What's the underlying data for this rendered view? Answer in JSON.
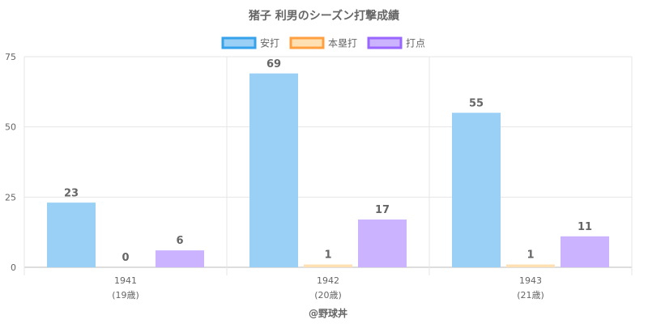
{
  "chart_data": {
    "type": "bar",
    "title": "猪子 利男のシーズン打撃成績",
    "categories": [
      "1941",
      "1942",
      "1943"
    ],
    "category_sublabels": [
      "(19歳)",
      "(20歳)",
      "(21歳)"
    ],
    "series": [
      {
        "name": "安打",
        "values": [
          23,
          69,
          55
        ],
        "color": "#9ad0f5",
        "border": "#36a2eb"
      },
      {
        "name": "本塁打",
        "values": [
          0,
          1,
          1
        ],
        "color": "#ffe0b3",
        "border": "#ff9f40"
      },
      {
        "name": "打点",
        "values": [
          6,
          17,
          11
        ],
        "color": "#ccb3ff",
        "border": "#9966ff"
      }
    ],
    "ylim": [
      0,
      75
    ],
    "yticks": [
      0,
      25,
      50,
      75
    ],
    "grid": true,
    "legend": "top-center",
    "caption": "@野球丼"
  }
}
